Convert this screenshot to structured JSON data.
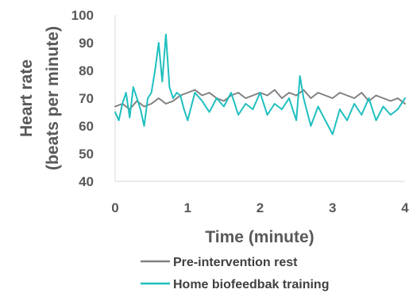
{
  "chart_data": {
    "type": "line",
    "xlabel": "Time (minute)",
    "ylabel_lines": [
      "Heart rate",
      "(beats per minute)"
    ],
    "xlim": [
      0,
      4
    ],
    "ylim": [
      40,
      100
    ],
    "xticks": [
      0,
      1,
      2,
      3,
      4
    ],
    "yticks": [
      40,
      50,
      60,
      70,
      80,
      90,
      100
    ],
    "grid": false,
    "legend_position": "bottom",
    "series": [
      {
        "name": "Pre-intervention rest",
        "color": "#808080",
        "x": [
          0,
          0.1,
          0.2,
          0.3,
          0.4,
          0.5,
          0.6,
          0.7,
          0.8,
          0.9,
          1.0,
          1.1,
          1.2,
          1.3,
          1.4,
          1.5,
          1.6,
          1.7,
          1.8,
          1.9,
          2.0,
          2.1,
          2.2,
          2.3,
          2.4,
          2.5,
          2.6,
          2.7,
          2.8,
          2.9,
          3.0,
          3.1,
          3.2,
          3.3,
          3.4,
          3.5,
          3.6,
          3.7,
          3.8,
          3.9,
          4.0
        ],
        "y": [
          67,
          68,
          66,
          69,
          67,
          68,
          70,
          68,
          69,
          71,
          72,
          73,
          71,
          72,
          70,
          69,
          71,
          72,
          70,
          71,
          72,
          71,
          73,
          70,
          72,
          71,
          73,
          70,
          72,
          71,
          70,
          72,
          71,
          70,
          72,
          69,
          71,
          70,
          69,
          70,
          68
        ]
      },
      {
        "name": "Home biofeedbak training",
        "color": "#1fbfbf",
        "x": [
          0,
          0.05,
          0.1,
          0.15,
          0.2,
          0.25,
          0.3,
          0.35,
          0.4,
          0.45,
          0.5,
          0.55,
          0.6,
          0.65,
          0.7,
          0.75,
          0.8,
          0.85,
          0.9,
          0.95,
          1.0,
          1.1,
          1.2,
          1.3,
          1.4,
          1.5,
          1.6,
          1.7,
          1.8,
          1.9,
          2.0,
          2.1,
          2.2,
          2.3,
          2.4,
          2.5,
          2.55,
          2.6,
          2.7,
          2.8,
          2.9,
          3.0,
          3.1,
          3.2,
          3.3,
          3.4,
          3.5,
          3.6,
          3.7,
          3.8,
          3.9,
          4.0
        ],
        "y": [
          65,
          62,
          68,
          72,
          63,
          74,
          70,
          66,
          60,
          70,
          72,
          80,
          90,
          76,
          93,
          74,
          70,
          72,
          71,
          66,
          62,
          72,
          69,
          65,
          70,
          67,
          72,
          64,
          68,
          66,
          72,
          64,
          68,
          66,
          70,
          62,
          78,
          70,
          60,
          67,
          62,
          57,
          66,
          62,
          68,
          64,
          70,
          62,
          67,
          64,
          66,
          70
        ]
      }
    ]
  }
}
